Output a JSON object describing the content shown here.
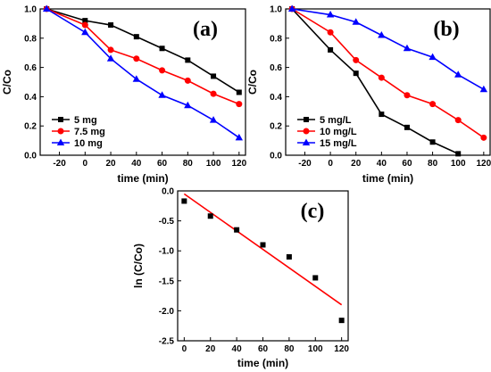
{
  "chart_data": [
    {
      "type": "line",
      "panel_label": "(a)",
      "xlabel": "time (min)",
      "ylabel": "C/Co",
      "xlim": [
        -35,
        125
      ],
      "ylim": [
        0.0,
        1.0
      ],
      "x_ticks": [
        -20,
        0,
        20,
        40,
        60,
        80,
        100,
        120
      ],
      "y_ticks": [
        0.0,
        0.2,
        0.4,
        0.6,
        0.8,
        1.0
      ],
      "x_tick_labels": [
        "-20",
        "0",
        "20",
        "40",
        "60",
        "80",
        "100",
        "120"
      ],
      "y_tick_labels": [
        "0.0",
        "0.2",
        "0.4",
        "0.6",
        "0.8",
        "1.0"
      ],
      "legend_position": "bottom-left",
      "series": [
        {
          "name": "5 mg",
          "color": "#000000",
          "marker": "square",
          "x": [
            -30,
            0,
            20,
            40,
            60,
            80,
            100,
            120
          ],
          "y": [
            1.0,
            0.92,
            0.89,
            0.81,
            0.73,
            0.65,
            0.54,
            0.43
          ]
        },
        {
          "name": "7.5 mg",
          "color": "#ff0000",
          "marker": "circle",
          "x": [
            -30,
            0,
            20,
            40,
            60,
            80,
            100,
            120
          ],
          "y": [
            1.0,
            0.89,
            0.72,
            0.66,
            0.58,
            0.51,
            0.42,
            0.35
          ]
        },
        {
          "name": "10 mg",
          "color": "#0000ff",
          "marker": "triangle",
          "x": [
            -30,
            0,
            20,
            40,
            60,
            80,
            100,
            120
          ],
          "y": [
            1.0,
            0.84,
            0.66,
            0.52,
            0.41,
            0.34,
            0.24,
            0.12
          ]
        }
      ]
    },
    {
      "type": "line",
      "panel_label": "(b)",
      "xlabel": "time (min)",
      "ylabel": "C/Co",
      "xlim": [
        -35,
        125
      ],
      "ylim": [
        0.0,
        1.0
      ],
      "x_ticks": [
        -20,
        0,
        20,
        40,
        60,
        80,
        100,
        120
      ],
      "y_ticks": [
        0.0,
        0.2,
        0.4,
        0.6,
        0.8,
        1.0
      ],
      "x_tick_labels": [
        "-20",
        "0",
        "20",
        "40",
        "60",
        "80",
        "100",
        "120"
      ],
      "y_tick_labels": [
        "0.0",
        "0.2",
        "0.4",
        "0.6",
        "0.8",
        "1.0"
      ],
      "legend_position": "bottom-left",
      "series": [
        {
          "name": "5 mg/L",
          "color": "#000000",
          "marker": "square",
          "x": [
            -30,
            0,
            20,
            40,
            60,
            80,
            100
          ],
          "y": [
            1.0,
            0.72,
            0.56,
            0.28,
            0.19,
            0.09,
            0.01
          ]
        },
        {
          "name": "10 mg/L",
          "color": "#ff0000",
          "marker": "circle",
          "x": [
            -30,
            0,
            20,
            40,
            60,
            80,
            100,
            120
          ],
          "y": [
            1.0,
            0.84,
            0.65,
            0.53,
            0.41,
            0.35,
            0.24,
            0.12
          ]
        },
        {
          "name": "15 mg/L",
          "color": "#0000ff",
          "marker": "triangle",
          "x": [
            -30,
            0,
            20,
            40,
            60,
            80,
            100,
            120
          ],
          "y": [
            1.0,
            0.96,
            0.91,
            0.82,
            0.73,
            0.67,
            0.55,
            0.45
          ]
        }
      ]
    },
    {
      "type": "scatter",
      "panel_label": "(c)",
      "xlabel": "time (min)",
      "ylabel": "ln (C/Co)",
      "xlim": [
        -5,
        125
      ],
      "ylim": [
        -2.5,
        0.0
      ],
      "x_ticks": [
        0,
        20,
        40,
        60,
        80,
        100,
        120
      ],
      "y_ticks": [
        0.0,
        -0.5,
        -1.0,
        -1.5,
        -2.0,
        -2.5
      ],
      "x_tick_labels": [
        "0",
        "20",
        "40",
        "60",
        "80",
        "100",
        "120"
      ],
      "y_tick_labels": [
        "0.0",
        "-0.5",
        "-1.0",
        "-1.5",
        "-2.0",
        "-2.5"
      ],
      "series": [
        {
          "color": "#000000",
          "marker": "square",
          "x": [
            0,
            20,
            40,
            60,
            80,
            100,
            120
          ],
          "y": [
            -0.17,
            -0.42,
            -0.65,
            -0.9,
            -1.1,
            -1.45,
            -2.16
          ]
        }
      ],
      "fit_line": {
        "color": "#ff0000",
        "x": [
          0,
          120
        ],
        "y": [
          -0.05,
          -1.9
        ]
      }
    }
  ]
}
